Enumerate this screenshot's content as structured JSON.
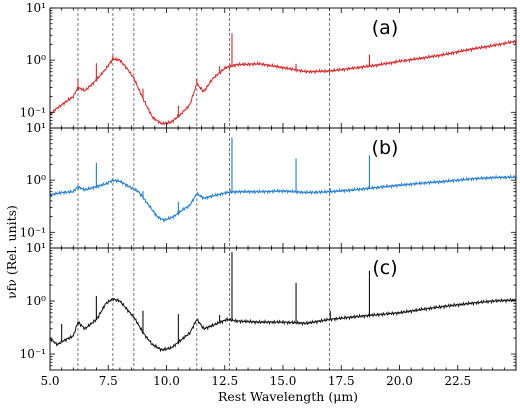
{
  "figure": {
    "xlabel": "Rest Wavelength (μm)",
    "ylabel": "νfν (Rel. units)"
  },
  "chart_data": {
    "type": "line",
    "x_scale": "linear",
    "y_scale": "log",
    "xlim": [
      5.0,
      25.0
    ],
    "ylim": [
      0.05,
      10
    ],
    "x_ticks": [
      5.0,
      7.5,
      10.0,
      12.5,
      15.0,
      17.5,
      20.0,
      22.5
    ],
    "x_tick_labels": [
      "5.0",
      "7.5",
      "10.0",
      "12.5",
      "15.0",
      "17.5",
      "20.0",
      "22.5"
    ],
    "y_tick_labels_by_panel": [
      [
        "10¹",
        "10⁰",
        "10⁻¹"
      ],
      [
        "10¹",
        "10⁰",
        "10⁻¹"
      ],
      [
        "10¹",
        "10⁰",
        "10⁻¹"
      ]
    ],
    "reference_lines_x": [
      6.2,
      7.7,
      8.6,
      11.3,
      12.7,
      17.0
    ],
    "panels": [
      {
        "label": "(a)",
        "color": "#d62728",
        "continuum": [
          [
            5.0,
            0.09
          ],
          [
            5.3,
            0.12
          ],
          [
            5.6,
            0.15
          ],
          [
            6.0,
            0.2
          ],
          [
            6.2,
            0.3
          ],
          [
            6.5,
            0.26
          ],
          [
            6.9,
            0.38
          ],
          [
            7.3,
            0.6
          ],
          [
            7.7,
            1.05
          ],
          [
            8.0,
            1.0
          ],
          [
            8.3,
            0.7
          ],
          [
            8.6,
            0.45
          ],
          [
            9.0,
            0.18
          ],
          [
            9.4,
            0.08
          ],
          [
            9.8,
            0.06
          ],
          [
            10.2,
            0.065
          ],
          [
            10.6,
            0.09
          ],
          [
            11.0,
            0.14
          ],
          [
            11.3,
            0.35
          ],
          [
            11.6,
            0.25
          ],
          [
            12.0,
            0.45
          ],
          [
            12.5,
            0.7
          ],
          [
            13.0,
            0.82
          ],
          [
            14.0,
            0.85
          ],
          [
            15.0,
            0.72
          ],
          [
            16.0,
            0.6
          ],
          [
            17.0,
            0.62
          ],
          [
            18.0,
            0.7
          ],
          [
            19.0,
            0.8
          ],
          [
            20.0,
            0.95
          ],
          [
            21.0,
            1.1
          ],
          [
            22.0,
            1.3
          ],
          [
            23.0,
            1.6
          ],
          [
            24.0,
            1.9
          ],
          [
            25.0,
            2.3
          ]
        ],
        "lines": [
          [
            6.2,
            0.15
          ],
          [
            6.99,
            0.45
          ],
          [
            7.7,
            0.2
          ],
          [
            8.99,
            0.1
          ],
          [
            10.51,
            0.05
          ],
          [
            11.3,
            0.1
          ],
          [
            12.28,
            0.2
          ],
          [
            12.81,
            2.5
          ],
          [
            15.56,
            0.2
          ],
          [
            18.71,
            0.5
          ]
        ]
      },
      {
        "label": "(b)",
        "color": "#1f7bd6",
        "continuum": [
          [
            5.0,
            0.52
          ],
          [
            5.5,
            0.58
          ],
          [
            6.0,
            0.6
          ],
          [
            6.2,
            0.75
          ],
          [
            6.5,
            0.65
          ],
          [
            7.0,
            0.75
          ],
          [
            7.4,
            0.85
          ],
          [
            7.7,
            1.0
          ],
          [
            8.0,
            0.95
          ],
          [
            8.4,
            0.75
          ],
          [
            8.8,
            0.6
          ],
          [
            9.2,
            0.35
          ],
          [
            9.6,
            0.2
          ],
          [
            9.9,
            0.17
          ],
          [
            10.3,
            0.2
          ],
          [
            10.7,
            0.27
          ],
          [
            11.0,
            0.33
          ],
          [
            11.3,
            0.55
          ],
          [
            11.6,
            0.45
          ],
          [
            12.0,
            0.5
          ],
          [
            12.6,
            0.58
          ],
          [
            13.0,
            0.6
          ],
          [
            14.0,
            0.6
          ],
          [
            15.0,
            0.62
          ],
          [
            16.0,
            0.58
          ],
          [
            17.0,
            0.6
          ],
          [
            18.0,
            0.65
          ],
          [
            19.0,
            0.72
          ],
          [
            20.0,
            0.8
          ],
          [
            21.0,
            0.88
          ],
          [
            22.0,
            0.95
          ],
          [
            23.0,
            1.05
          ],
          [
            24.0,
            1.12
          ],
          [
            25.0,
            1.15
          ]
        ],
        "lines": [
          [
            6.99,
            1.4
          ],
          [
            8.99,
            0.15
          ],
          [
            10.51,
            0.15
          ],
          [
            12.81,
            6.0
          ],
          [
            15.56,
            2.0
          ],
          [
            17.03,
            0.1
          ],
          [
            18.71,
            2.3
          ]
        ]
      },
      {
        "label": "(c)",
        "color": "#111111",
        "continuum": [
          [
            5.0,
            0.2
          ],
          [
            5.3,
            0.15
          ],
          [
            5.6,
            0.18
          ],
          [
            6.0,
            0.22
          ],
          [
            6.2,
            0.4
          ],
          [
            6.5,
            0.3
          ],
          [
            7.0,
            0.45
          ],
          [
            7.4,
            0.9
          ],
          [
            7.7,
            1.1
          ],
          [
            8.0,
            1.0
          ],
          [
            8.3,
            0.7
          ],
          [
            8.6,
            0.5
          ],
          [
            9.0,
            0.25
          ],
          [
            9.4,
            0.15
          ],
          [
            9.8,
            0.12
          ],
          [
            10.2,
            0.13
          ],
          [
            10.6,
            0.18
          ],
          [
            11.0,
            0.25
          ],
          [
            11.3,
            0.45
          ],
          [
            11.6,
            0.3
          ],
          [
            12.0,
            0.35
          ],
          [
            12.6,
            0.45
          ],
          [
            13.0,
            0.42
          ],
          [
            14.0,
            0.4
          ],
          [
            15.0,
            0.4
          ],
          [
            16.0,
            0.38
          ],
          [
            17.0,
            0.45
          ],
          [
            18.0,
            0.5
          ],
          [
            19.0,
            0.55
          ],
          [
            20.0,
            0.6
          ],
          [
            21.0,
            0.7
          ],
          [
            22.0,
            0.8
          ],
          [
            23.0,
            0.9
          ],
          [
            24.0,
            1.0
          ],
          [
            25.0,
            1.05
          ]
        ],
        "lines": [
          [
            5.5,
            0.2
          ],
          [
            6.99,
            0.8
          ],
          [
            8.99,
            0.4
          ],
          [
            10.51,
            0.4
          ],
          [
            12.28,
            0.15
          ],
          [
            12.81,
            8.0
          ],
          [
            15.56,
            1.8
          ],
          [
            17.03,
            0.2
          ],
          [
            18.71,
            3.2
          ]
        ]
      }
    ]
  }
}
